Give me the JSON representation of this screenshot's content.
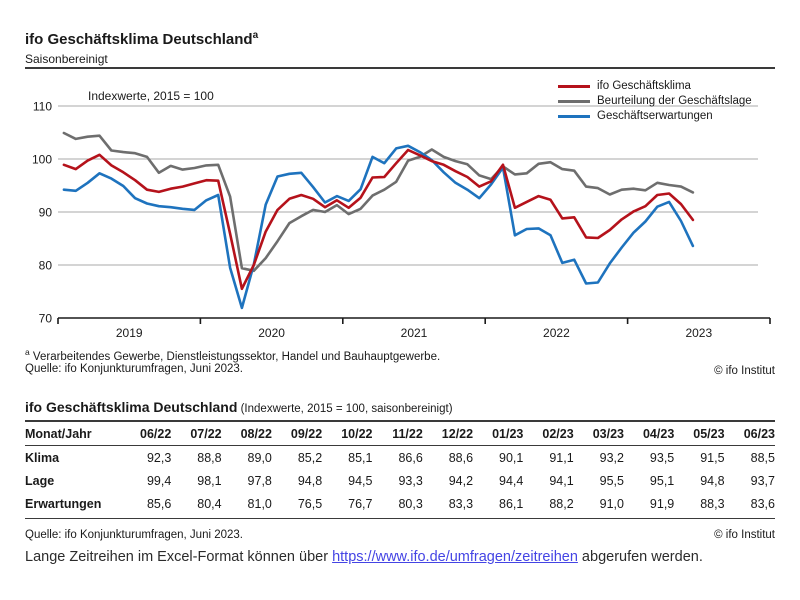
{
  "header": {
    "title": "ifo Geschäftsklima Deutschland",
    "title_sup": "a",
    "subtitle": "Saisonbereinigt"
  },
  "chart": {
    "annotation": "Indexwerte, 2015 = 100"
  },
  "chart_data": {
    "type": "line",
    "title": "ifo Geschäftsklima Deutschland (saisonbereinigt)",
    "x_unit": "month",
    "x_start": "2019-01",
    "x_end": "2023-06",
    "x_tick_labels": [
      "2019",
      "2020",
      "2021",
      "2022",
      "2023"
    ],
    "ylim": [
      70,
      110
    ],
    "yticks": [
      110,
      100,
      90,
      80,
      70
    ],
    "grid": "horizontal",
    "legend_position": "top-right",
    "series": [
      {
        "name": "ifo Geschäftsklima",
        "key": "klima",
        "color": "#b5121b",
        "values": [
          98.9,
          98.1,
          99.7,
          100.8,
          98.8,
          97.5,
          96.0,
          94.2,
          93.8,
          94.4,
          94.8,
          95.4,
          96.0,
          95.9,
          85.9,
          75.5,
          80.0,
          86.3,
          90.4,
          92.5,
          93.2,
          92.5,
          90.9,
          92.2,
          90.8,
          92.7,
          96.5,
          96.6,
          99.2,
          101.7,
          100.7,
          99.6,
          98.9,
          97.7,
          96.6,
          94.8,
          95.8,
          98.9,
          90.8,
          91.9,
          93.0,
          92.3,
          88.8,
          89.0,
          85.2,
          85.1,
          86.6,
          88.6,
          90.1,
          91.1,
          93.2,
          93.5,
          91.5,
          88.5
        ]
      },
      {
        "name": "Beurteilung der Geschäftslage",
        "key": "lage",
        "color": "#6e6e6e",
        "values": [
          104.9,
          103.8,
          104.2,
          104.4,
          101.6,
          101.3,
          101.1,
          100.4,
          97.4,
          98.7,
          98.0,
          98.3,
          98.8,
          98.9,
          92.9,
          79.4,
          78.9,
          81.3,
          84.5,
          87.9,
          89.2,
          90.4,
          90.0,
          91.3,
          89.6,
          90.6,
          93.1,
          94.2,
          95.7,
          99.7,
          100.4,
          101.8,
          100.4,
          99.6,
          99.0,
          96.9,
          96.2,
          98.6,
          97.1,
          97.3,
          99.1,
          99.4,
          98.1,
          97.8,
          94.8,
          94.5,
          93.3,
          94.2,
          94.4,
          94.1,
          95.5,
          95.1,
          94.8,
          93.7
        ]
      },
      {
        "name": "Geschäftserwartungen",
        "key": "erwartungen",
        "color": "#1e73be",
        "values": [
          94.2,
          94.0,
          95.5,
          97.3,
          96.3,
          94.9,
          92.6,
          91.6,
          91.1,
          90.9,
          90.6,
          90.4,
          92.2,
          93.2,
          79.5,
          71.9,
          80.1,
          91.4,
          96.7,
          97.2,
          97.4,
          94.7,
          91.8,
          93.0,
          92.1,
          94.3,
          100.4,
          99.2,
          102.0,
          102.5,
          101.3,
          99.8,
          97.5,
          95.5,
          94.2,
          92.6,
          95.2,
          98.4,
          85.6,
          86.8,
          86.9,
          85.6,
          80.4,
          81.0,
          76.5,
          76.7,
          80.3,
          83.3,
          86.1,
          88.2,
          91.0,
          91.9,
          88.3,
          83.6
        ]
      }
    ]
  },
  "footnotes": {
    "marker": "a",
    "text": " Verarbeitendes Gewerbe, Dienstleistungssektor, Handel und Bauhauptgewerbe.",
    "source": "Quelle: ifo Konjunkturumfragen, Juni 2023.",
    "copyright": "© ifo Institut"
  },
  "table": {
    "title": "ifo Geschäftsklima Deutschland",
    "title_sub": " (Indexwerte, 2015 = 100, saisonbereinigt)",
    "col_header": "Monat/Jahr",
    "months": [
      "06/22",
      "07/22",
      "08/22",
      "09/22",
      "10/22",
      "11/22",
      "12/22",
      "01/23",
      "02/23",
      "03/23",
      "04/23",
      "05/23",
      "06/23"
    ],
    "rows": [
      {
        "label": "Klima",
        "key": "klima",
        "values": [
          "92,3",
          "88,8",
          "89,0",
          "85,2",
          "85,1",
          "86,6",
          "88,6",
          "90,1",
          "91,1",
          "93,2",
          "93,5",
          "91,5",
          "88,5"
        ]
      },
      {
        "label": "Lage",
        "key": "lage",
        "values": [
          "99,4",
          "98,1",
          "97,8",
          "94,8",
          "94,5",
          "93,3",
          "94,2",
          "94,4",
          "94,1",
          "95,5",
          "95,1",
          "94,8",
          "93,7"
        ]
      },
      {
        "label": "Erwartungen",
        "key": "erwartungen",
        "values": [
          "85,6",
          "80,4",
          "81,0",
          "76,5",
          "76,7",
          "80,3",
          "83,3",
          "86,1",
          "88,2",
          "91,0",
          "91,9",
          "88,3",
          "83,6"
        ]
      }
    ],
    "source": "Quelle: ifo Konjunkturumfragen, Juni 2023.",
    "copyright": "© ifo Institut"
  },
  "footer": {
    "sentence_prefix": "Lange Zeitreihen im Excel-Format können über ",
    "link_text": "https://www.ifo.de/umfragen/zeitreihen",
    "sentence_suffix": " abgerufen werden."
  }
}
